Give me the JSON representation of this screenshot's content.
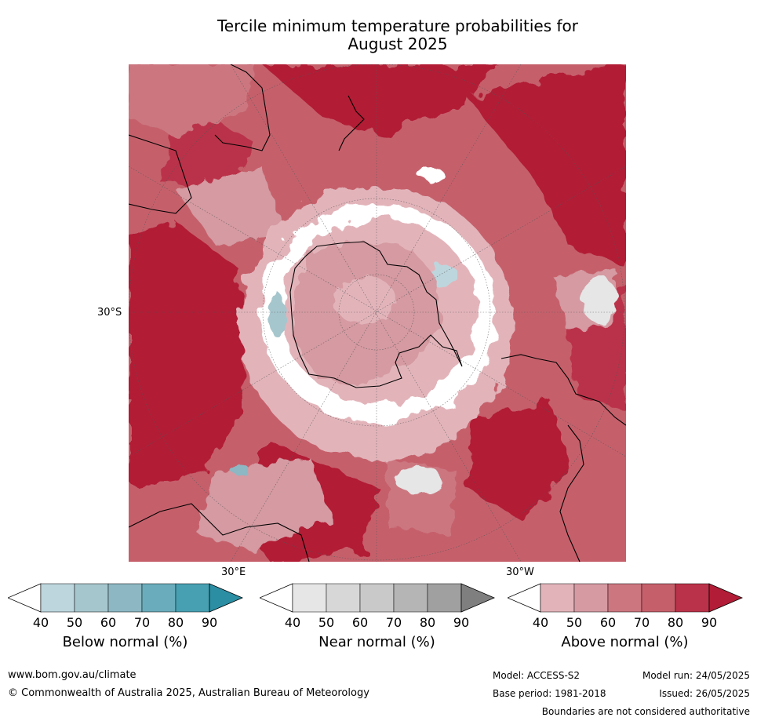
{
  "title_line1": "Tercile minimum temperature probabilities for",
  "title_line2": "August 2025",
  "map": {
    "lat_label": "30°S",
    "lon_label_east": "30°E",
    "lon_label_west": "30°W"
  },
  "colorbars": [
    {
      "label": "Below normal (%)",
      "ticks": [
        "40",
        "50",
        "60",
        "70",
        "80",
        "90"
      ],
      "colors": [
        "#ffffff",
        "#bdd6dd",
        "#a6c6cd",
        "#8cb7c3",
        "#6aacbb",
        "#47a0b2",
        "#2b8ea3"
      ]
    },
    {
      "label": "Near normal (%)",
      "ticks": [
        "40",
        "50",
        "60",
        "70",
        "80",
        "90"
      ],
      "colors": [
        "#ffffff",
        "#e6e6e6",
        "#d7d7d7",
        "#c9c9c9",
        "#b5b5b5",
        "#a0a0a0",
        "#7f7f7f"
      ]
    },
    {
      "label": "Above normal (%)",
      "ticks": [
        "40",
        "50",
        "60",
        "70",
        "80",
        "90"
      ],
      "colors": [
        "#ffffff",
        "#e2b4ba",
        "#d59aa2",
        "#cc7780",
        "#c5606b",
        "#ba3249",
        "#b21c36"
      ]
    }
  ],
  "footer": {
    "url": "www.bom.gov.au/climate",
    "copyright": "© Commonwealth of Australia 2025, Australian Bureau of Meteorology",
    "model": "Model: ACCESS-S2",
    "model_run": "Model run: 24/05/2025",
    "base_period": "Base period: 1981-2018",
    "issued": "Issued: 26/05/2025",
    "disclaimer": "Boundaries are not considered authoritative"
  }
}
